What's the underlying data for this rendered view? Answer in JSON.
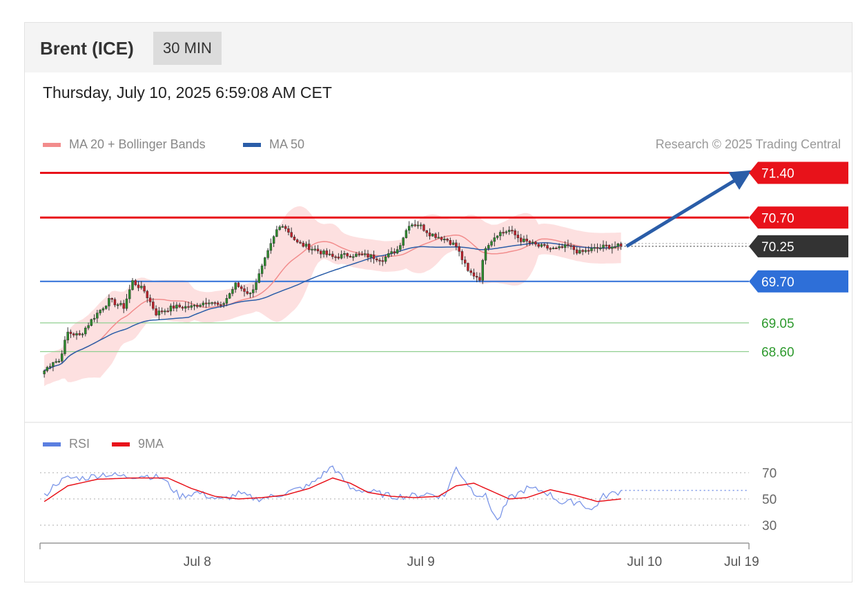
{
  "header": {
    "instrument": "Brent (ICE)",
    "timeframe": "30 MIN"
  },
  "timestamp": "Thursday, July 10, 2025 6:59:08 AM CET",
  "legend": {
    "ma20_label": "MA 20 + Bollinger Bands",
    "ma20_color": "#f28c8c",
    "ma50_label": "MA 50",
    "ma50_color": "#2a5da8"
  },
  "credit": "Research © 2025 Trading Central",
  "rsi_legend": {
    "rsi_label": "RSI",
    "rsi_color": "#5b7fe0",
    "ma_label": "9MA",
    "ma_color": "#e8121a"
  },
  "chart_data": {
    "type": "candlestick",
    "ylim": [
      67.6,
      71.6
    ],
    "levels": [
      {
        "value": 71.4,
        "label": "71.40",
        "kind": "resistance",
        "color": "#e8121a",
        "tag": "red"
      },
      {
        "value": 70.7,
        "label": "70.70",
        "kind": "resistance",
        "color": "#e8121a",
        "tag": "red"
      },
      {
        "value": 70.25,
        "label": "70.25",
        "kind": "last",
        "color": "#333333",
        "tag": "dark"
      },
      {
        "value": 69.7,
        "label": "69.70",
        "kind": "pivot",
        "color": "#2e6fd8",
        "tag": "blue"
      },
      {
        "value": 69.05,
        "label": "69.05",
        "kind": "support",
        "color": "#2e9a2e",
        "tag": "green"
      },
      {
        "value": 68.6,
        "label": "68.60",
        "kind": "support",
        "color": "#2e9a2e",
        "tag": "green"
      }
    ],
    "close_anchors": [
      [
        0,
        68.3
      ],
      [
        3,
        68.45
      ],
      [
        5,
        68.45
      ],
      [
        8,
        68.9
      ],
      [
        12,
        68.85
      ],
      [
        17,
        69.15
      ],
      [
        22,
        69.4
      ],
      [
        27,
        69.3
      ],
      [
        30,
        69.7
      ],
      [
        34,
        69.55
      ],
      [
        38,
        69.2
      ],
      [
        44,
        69.3
      ],
      [
        50,
        69.3
      ],
      [
        56,
        69.4
      ],
      [
        60,
        69.3
      ],
      [
        65,
        69.65
      ],
      [
        70,
        69.5
      ],
      [
        73,
        69.8
      ],
      [
        79,
        70.5
      ],
      [
        81,
        70.6
      ],
      [
        86,
        70.3
      ],
      [
        92,
        70.2
      ],
      [
        98,
        70.08
      ],
      [
        104,
        70.12
      ],
      [
        110,
        70.1
      ],
      [
        115,
        70.05
      ],
      [
        120,
        70.2
      ],
      [
        124,
        70.6
      ],
      [
        127,
        70.6
      ],
      [
        131,
        70.45
      ],
      [
        137,
        70.35
      ],
      [
        140,
        70.25
      ],
      [
        144,
        69.85
      ],
      [
        148,
        69.75
      ],
      [
        150,
        70.25
      ],
      [
        154,
        70.45
      ],
      [
        158,
        70.5
      ],
      [
        162,
        70.35
      ],
      [
        168,
        70.25
      ],
      [
        174,
        70.2
      ],
      [
        178,
        70.25
      ],
      [
        182,
        70.15
      ],
      [
        186,
        70.2
      ],
      [
        191,
        70.25
      ],
      [
        196,
        70.25
      ]
    ],
    "candle_count": 197,
    "rsi": {
      "ylim": [
        20,
        80
      ],
      "levels": [
        70,
        50,
        30
      ],
      "rsi_anchors": [
        [
          0,
          52
        ],
        [
          4,
          62
        ],
        [
          8,
          66
        ],
        [
          14,
          66
        ],
        [
          20,
          69
        ],
        [
          28,
          67
        ],
        [
          34,
          68
        ],
        [
          40,
          66
        ],
        [
          46,
          52
        ],
        [
          52,
          55
        ],
        [
          60,
          49
        ],
        [
          66,
          54
        ],
        [
          72,
          50
        ],
        [
          78,
          52
        ],
        [
          84,
          56
        ],
        [
          90,
          60
        ],
        [
          98,
          75
        ],
        [
          104,
          58
        ],
        [
          110,
          56
        ],
        [
          118,
          52
        ],
        [
          124,
          52
        ],
        [
          130,
          54
        ],
        [
          136,
          52
        ],
        [
          140,
          74
        ],
        [
          146,
          55
        ],
        [
          150,
          52
        ],
        [
          154,
          33
        ],
        [
          158,
          50
        ],
        [
          164,
          58
        ],
        [
          170,
          56
        ],
        [
          176,
          47
        ],
        [
          182,
          48
        ],
        [
          186,
          41
        ],
        [
          190,
          52
        ],
        [
          196,
          56
        ]
      ],
      "ma_anchors": [
        [
          0,
          48
        ],
        [
          8,
          60
        ],
        [
          18,
          65
        ],
        [
          30,
          66
        ],
        [
          42,
          66
        ],
        [
          50,
          58
        ],
        [
          58,
          52
        ],
        [
          66,
          50
        ],
        [
          74,
          51
        ],
        [
          82,
          53
        ],
        [
          90,
          58
        ],
        [
          98,
          66
        ],
        [
          104,
          62
        ],
        [
          110,
          55
        ],
        [
          118,
          52
        ],
        [
          126,
          51
        ],
        [
          134,
          52
        ],
        [
          140,
          60
        ],
        [
          146,
          62
        ],
        [
          152,
          56
        ],
        [
          158,
          50
        ],
        [
          164,
          51
        ],
        [
          172,
          57
        ],
        [
          180,
          53
        ],
        [
          188,
          48
        ],
        [
          196,
          50
        ]
      ],
      "tick_labels": [
        "70",
        "50",
        "30"
      ]
    },
    "x_ticks": [
      {
        "label": "Jul 8",
        "index": 52
      },
      {
        "label": "Jul 9",
        "index": 128
      },
      {
        "label": "Jul 10",
        "index": 204
      },
      {
        "label": "Jul 19",
        "index": 237
      }
    ],
    "x_slots": 240
  }
}
